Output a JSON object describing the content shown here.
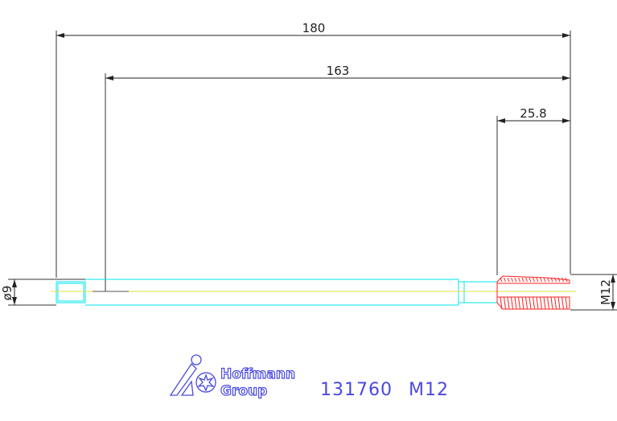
{
  "drawing": {
    "dimensions": {
      "overall_length": "180",
      "shank_to_tip": "163",
      "thread_length": "25.8",
      "shank_diameter": "ø9",
      "thread_size": "M12"
    },
    "colors": {
      "dimension": "#222222",
      "body": "#00e5ee",
      "thread": "#ff2020",
      "centerline": "#e0e040",
      "logo": "#4a4ae0"
    }
  },
  "title_block": {
    "logo_line1": "Hoffmann",
    "logo_line2": "Group",
    "part_number": "131760",
    "size": "M12"
  }
}
